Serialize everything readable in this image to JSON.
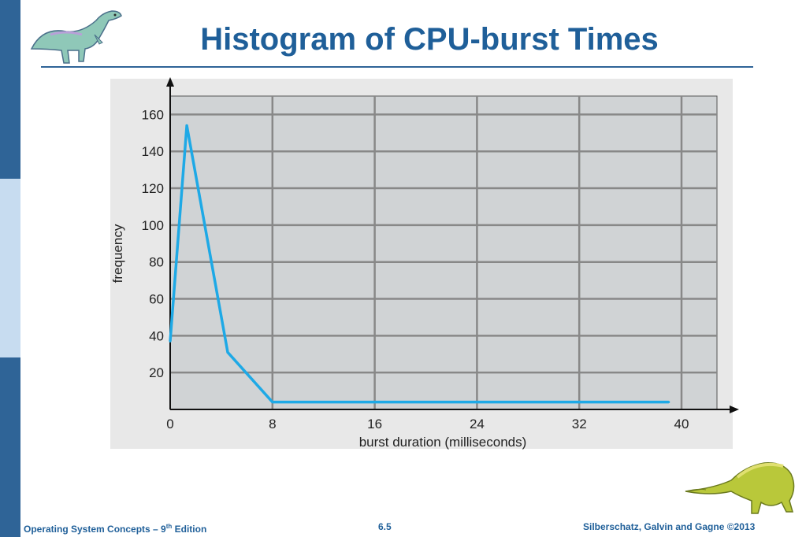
{
  "slide": {
    "title": "Histogram of CPU-burst Times",
    "footer_left_main": "Operating System Concepts – 9",
    "footer_left_sup": "th",
    "footer_left_end": " Edition",
    "footer_center": "6.5",
    "footer_right": "Silberschatz, Galvin and Gagne ©2013",
    "accent_color": "#1f5f99",
    "logo_top_icon": "dinosaur-icon",
    "logo_bottom_icon": "dinosaur-icon"
  },
  "chart_data": {
    "type": "line",
    "title": "",
    "xlabel": "burst duration (milliseconds)",
    "ylabel": "frequency",
    "xlim": [
      0,
      40
    ],
    "ylim": [
      0,
      170
    ],
    "xticks": [
      0,
      8,
      16,
      24,
      32,
      40
    ],
    "yticks": [
      20,
      40,
      60,
      80,
      100,
      120,
      140,
      160
    ],
    "grid": true,
    "series": [
      {
        "color": "#1ea9e6",
        "x": [
          0,
          1.3,
          4.5,
          8,
          39
        ],
        "y": [
          37,
          154,
          31,
          4,
          4
        ]
      }
    ]
  }
}
